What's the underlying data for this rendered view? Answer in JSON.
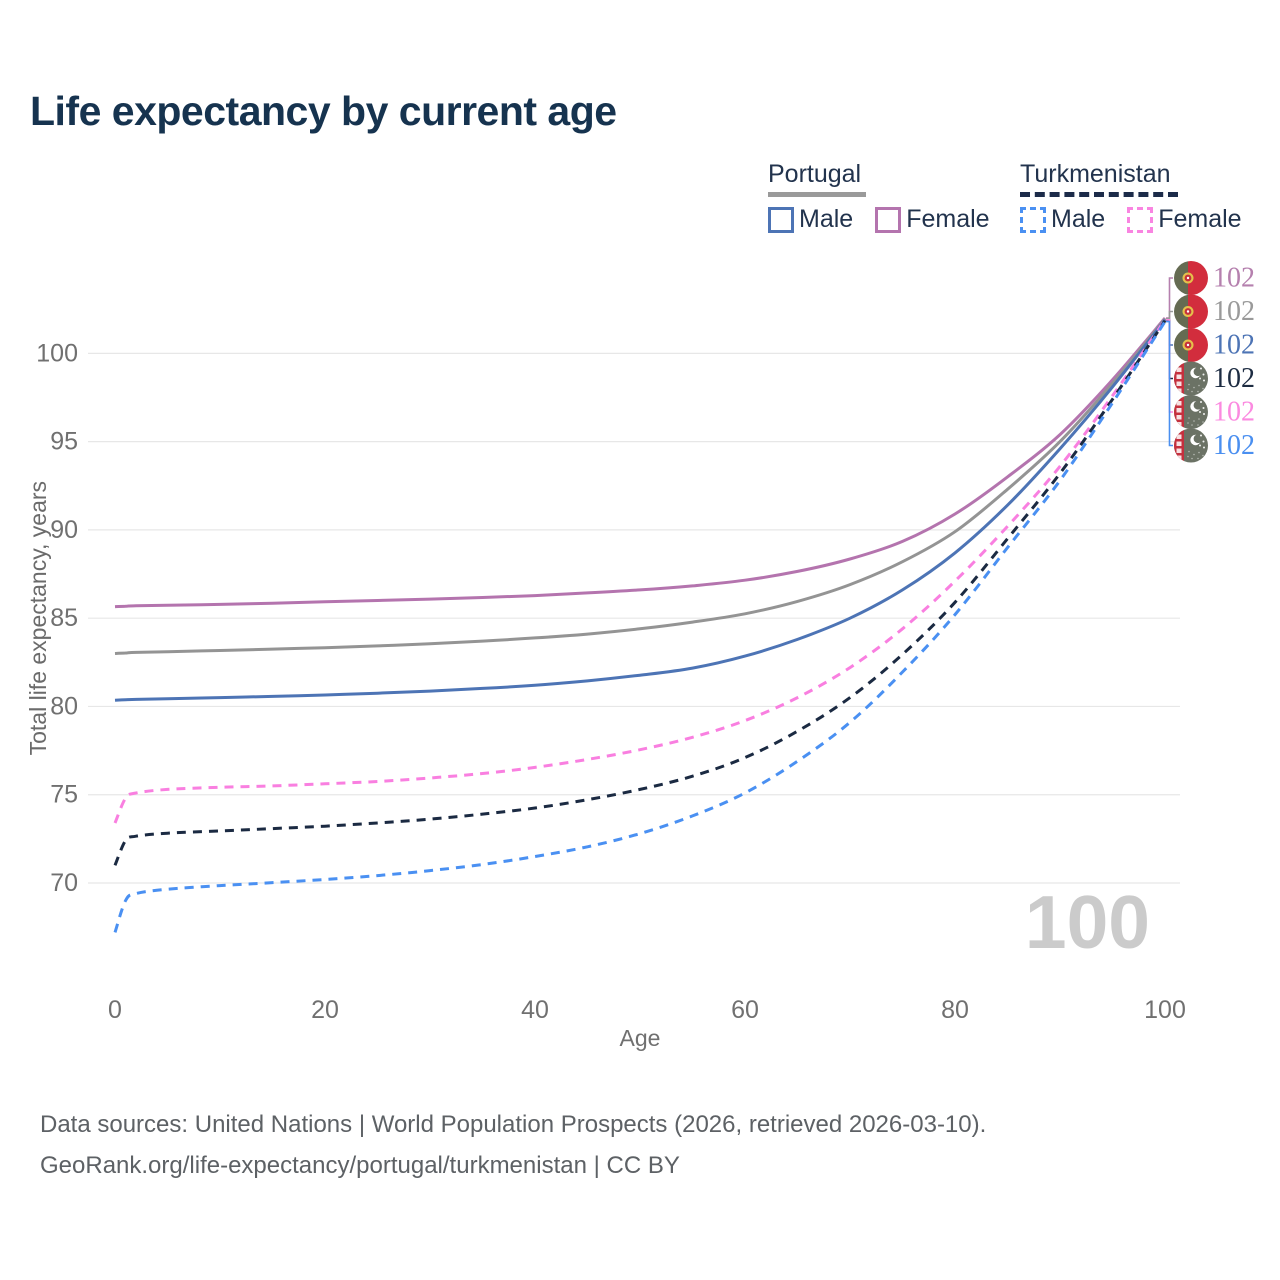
{
  "title": "Life expectancy by current age",
  "legend": {
    "groups": [
      {
        "label": "Portugal",
        "line_style": "solid",
        "underline_color": "#9a9a9a",
        "items": [
          {
            "label": "Male",
            "color": "#4d74b5"
          },
          {
            "label": "Female",
            "color": "#b474ae"
          }
        ]
      },
      {
        "label": "Turkmenistan",
        "line_style": "dashed",
        "underline_color": "#1c2b49",
        "items": [
          {
            "label": "Male",
            "color": "#4a90f2"
          },
          {
            "label": "Female",
            "color": "#f985e1"
          }
        ]
      }
    ]
  },
  "watermark": "100",
  "chart_data": {
    "type": "line",
    "title": "Life expectancy by current age",
    "xlabel": "Age",
    "ylabel": "Total life expectancy, years",
    "x_ticks": [
      0,
      20,
      40,
      60,
      80,
      100
    ],
    "y_ticks": [
      70,
      75,
      80,
      85,
      90,
      95,
      100
    ],
    "xlim": [
      0,
      100
    ],
    "ylim": [
      67,
      102.5
    ],
    "grid": "horizontal",
    "gridline_color": "#e7e7e7",
    "axis_text_color": "#707070",
    "x": [
      0,
      1,
      2,
      5,
      10,
      15,
      20,
      25,
      30,
      35,
      40,
      45,
      50,
      55,
      60,
      65,
      70,
      75,
      80,
      85,
      90,
      95,
      100
    ],
    "series": [
      {
        "name": "Portugal Female",
        "country": "Portugal",
        "sex": "Female",
        "color": "#b474ae",
        "dash": "solid",
        "values": [
          85.65,
          85.68,
          85.7,
          85.73,
          85.78,
          85.85,
          85.93,
          86.0,
          86.08,
          86.17,
          86.28,
          86.43,
          86.6,
          86.83,
          87.15,
          87.65,
          88.35,
          89.35,
          90.9,
          93.0,
          95.4,
          98.5,
          102.0
        ]
      },
      {
        "name": "Portugal",
        "country": "Portugal",
        "sex": "Both",
        "color": "#949494",
        "dash": "solid",
        "values": [
          83.0,
          83.03,
          83.06,
          83.1,
          83.17,
          83.25,
          83.33,
          83.43,
          83.55,
          83.7,
          83.88,
          84.1,
          84.4,
          84.78,
          85.25,
          85.95,
          86.9,
          88.2,
          89.9,
          92.3,
          95.0,
          98.3,
          101.95
        ]
      },
      {
        "name": "Portugal Male",
        "country": "Portugal",
        "sex": "Male",
        "color": "#4d74b5",
        "dash": "solid",
        "values": [
          80.35,
          80.38,
          80.4,
          80.44,
          80.5,
          80.57,
          80.65,
          80.75,
          80.87,
          81.02,
          81.2,
          81.45,
          81.77,
          82.17,
          82.85,
          83.8,
          85.0,
          86.6,
          88.7,
          91.4,
          94.6,
          98.1,
          101.9
        ]
      },
      {
        "name": "Turkmenistan Female",
        "country": "Turkmenistan",
        "sex": "Female",
        "color": "#f97fe0",
        "dash": "dashed",
        "values": [
          73.4,
          74.8,
          75.1,
          75.3,
          75.42,
          75.5,
          75.62,
          75.75,
          75.95,
          76.2,
          76.55,
          77.0,
          77.55,
          78.25,
          79.2,
          80.5,
          82.2,
          84.4,
          87.1,
          90.2,
          93.6,
          97.6,
          101.9
        ]
      },
      {
        "name": "Turkmenistan",
        "country": "Turkmenistan",
        "sex": "Both",
        "color": "#1b2a42",
        "dash": "dashed",
        "values": [
          71.0,
          72.4,
          72.65,
          72.82,
          72.95,
          73.08,
          73.22,
          73.4,
          73.62,
          73.9,
          74.25,
          74.72,
          75.3,
          76.05,
          77.1,
          78.6,
          80.5,
          82.95,
          85.9,
          89.5,
          93.2,
          97.4,
          101.85
        ]
      },
      {
        "name": "Turkmenistan Male",
        "country": "Turkmenistan",
        "sex": "Male",
        "color": "#4a90f2",
        "dash": "dashed",
        "values": [
          67.2,
          69.0,
          69.4,
          69.65,
          69.85,
          70.02,
          70.2,
          70.42,
          70.7,
          71.05,
          71.5,
          72.05,
          72.8,
          73.8,
          75.1,
          76.9,
          79.1,
          81.95,
          85.2,
          89.0,
          92.8,
          97.2,
          101.8
        ]
      }
    ],
    "end_labels": [
      {
        "text": "102",
        "series": "Portugal Female",
        "color": "#b580ae",
        "flag": "portugal"
      },
      {
        "text": "102",
        "series": "Portugal",
        "color": "#9a9a9a",
        "flag": "portugal"
      },
      {
        "text": "102",
        "series": "Portugal Male",
        "color": "#4d74b5",
        "flag": "portugal"
      },
      {
        "text": "102",
        "series": "Turkmenistan",
        "color": "#1d2c42",
        "flag": "turkmenistan"
      },
      {
        "text": "102",
        "series": "Turkmenistan Female",
        "color": "#fb8ae0",
        "flag": "turkmenistan"
      },
      {
        "text": "102",
        "series": "Turkmenistan Male",
        "color": "#4a8ff0",
        "flag": "turkmenistan"
      }
    ],
    "legend_position": "top-right"
  },
  "footer": {
    "line1": "Data sources: United Nations | World Population Prospects (2026, retrieved 2026-03-10).",
    "line2": "GeoRank.org/life-expectancy/portugal/turkmenistan | CC BY"
  }
}
